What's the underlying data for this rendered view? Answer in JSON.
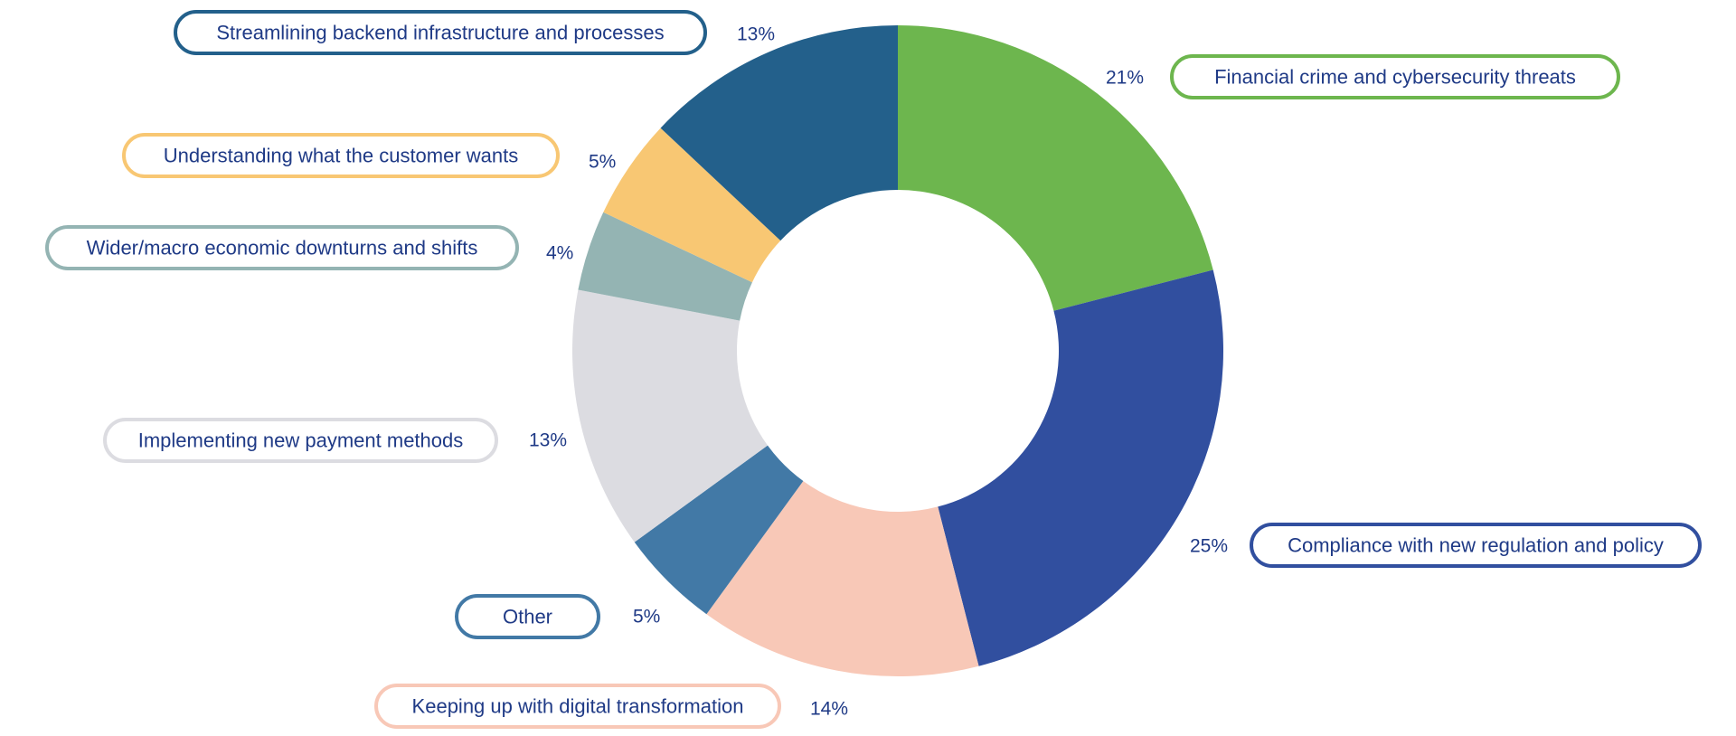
{
  "chart_data": {
    "type": "pie",
    "variant": "donut",
    "slices": [
      {
        "label": "Financial crime and cybersecurity threats",
        "value": 21,
        "value_label": "21%",
        "color": "#6db64e"
      },
      {
        "label": "Compliance with new regulation and policy",
        "value": 25,
        "value_label": "25%",
        "color": "#314f9f"
      },
      {
        "label": "Keeping up with digital transformation",
        "value": 14,
        "value_label": "14%",
        "color": "#f8c8b7"
      },
      {
        "label": "Other",
        "value": 5,
        "value_label": "5%",
        "color": "#4279a6"
      },
      {
        "label": "Implementing new payment methods",
        "value": 13,
        "value_label": "13%",
        "color": "#dcdce1"
      },
      {
        "label": "Wider/macro economic downturns and shifts",
        "value": 4,
        "value_label": "4%",
        "color": "#94b4b3"
      },
      {
        "label": "Understanding what the customer wants",
        "value": 5,
        "value_label": "5%",
        "color": "#f8c773"
      },
      {
        "label": "Streamlining backend infrastructure and processes",
        "value": 13,
        "value_label": "13%",
        "color": "#23608b"
      }
    ],
    "start_angle": "12 o'clock",
    "direction": "clockwise",
    "legend": "none",
    "label_text_color": "#1f3a86"
  }
}
